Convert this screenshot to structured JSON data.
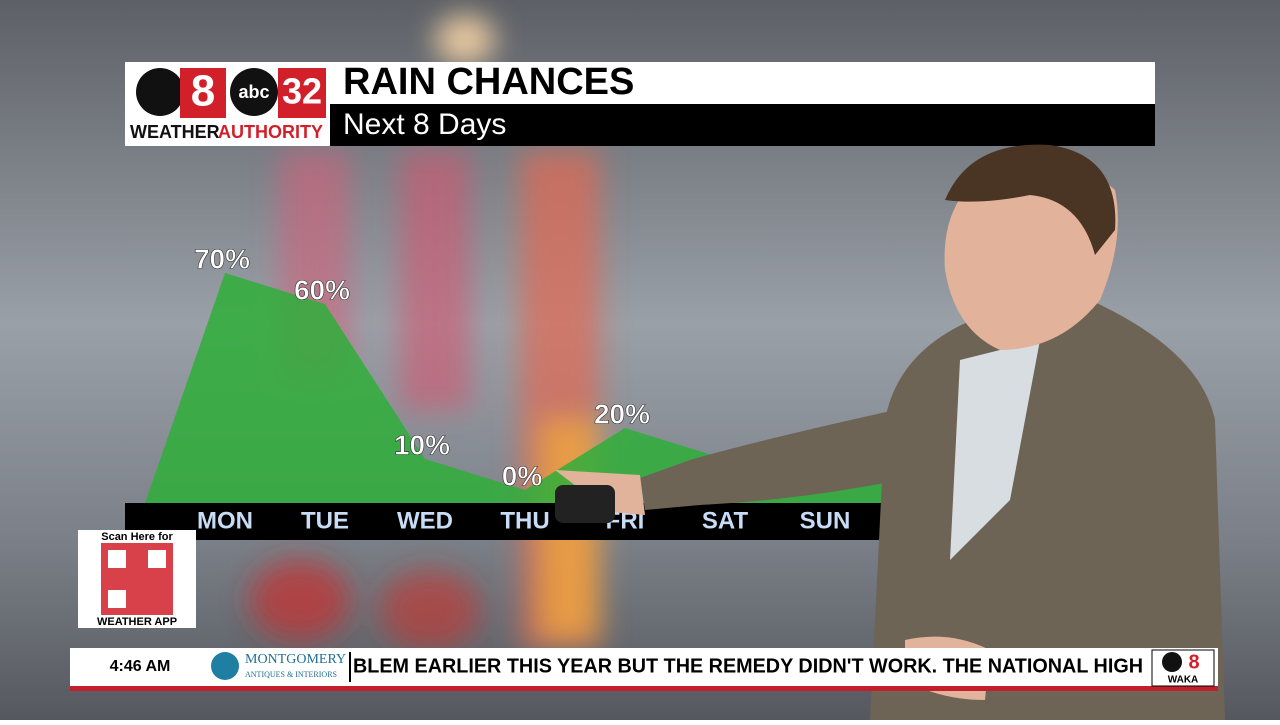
{
  "header": {
    "logo_number": "8",
    "logo_network": "abc",
    "logo_channel": "32",
    "brand_weather": "WEATHER",
    "brand_authority": "AUTHORITY"
  },
  "chart_data": {
    "type": "area",
    "title": "RAIN CHANCES",
    "subtitle": "Next 8 Days",
    "categories": [
      "MON",
      "TUE",
      "WED",
      "THU",
      "FRI",
      "SAT",
      "SUN"
    ],
    "values": [
      70,
      60,
      10,
      0,
      20,
      10,
      5
    ],
    "value_labels": [
      "70%",
      "60%",
      "10%",
      "0%",
      "20%",
      null,
      null
    ],
    "color": "#2fae3a"
  },
  "qr": {
    "top": "Scan Here for",
    "bottom": "WEATHER APP"
  },
  "ticker": {
    "time": "4:46 AM",
    "sponsor": "MONTGOMERY",
    "sponsor_sub": "ANTIQUES & INTERIORS",
    "text": "BLEM EARLIER THIS YEAR BUT THE REMEDY DIDN'T WORK. THE NATIONAL HIGH",
    "station": "WAKA",
    "station_number": "8"
  }
}
